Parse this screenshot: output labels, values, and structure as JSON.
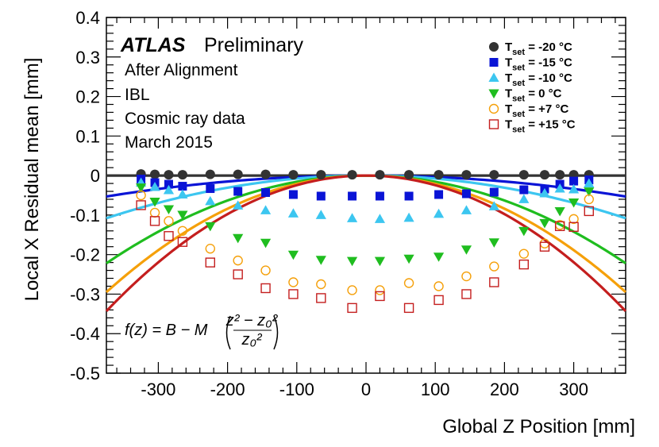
{
  "chart_data": {
    "type": "scatter",
    "xlabel": "Global Z Position [mm]",
    "ylabel": "Local X Residual mean [mm]",
    "xlim": [
      -375,
      375
    ],
    "ylim": [
      -0.5,
      0.4
    ],
    "xticks": [
      -300,
      -200,
      -100,
      0,
      100,
      200,
      300
    ],
    "xtick_labels": [
      "-300",
      "-200",
      "-100",
      "0",
      "100",
      "200",
      "300"
    ],
    "yticks": [
      0.4,
      0.3,
      0.2,
      0.1,
      0,
      -0.1,
      -0.2,
      -0.3,
      -0.4,
      -0.5
    ],
    "ytick_labels": [
      "0.4",
      "0.3",
      "0.2",
      "0.1",
      "0",
      "-0.1",
      "-0.2",
      "-0.3",
      "-0.4",
      "-0.5"
    ],
    "grid": false,
    "legend_position": "top-right",
    "annotations": {
      "atlas": "ATLAS",
      "preliminary": "Preliminary",
      "lines": [
        "After Alignment",
        "IBL",
        "Cosmic ray data",
        "March 2015"
      ]
    },
    "formula": {
      "lhs": "f(z) = B − M",
      "numerator": "z² − z₀²",
      "denominator": "z₀²"
    },
    "x": [
      -325,
      -305,
      -285,
      -265,
      -225,
      -185,
      -145,
      -105,
      -65,
      -20,
      20,
      62,
      105,
      145,
      185,
      228,
      258,
      280,
      300,
      322
    ],
    "series": [
      {
        "name": "T_set = -20 °C",
        "label_t": "T",
        "label_sub": "set",
        "label_val": "= -20  °C",
        "color": "#333333",
        "marker": "filled-circle",
        "B": 0.0,
        "M": 0.0,
        "values": [
          0.004,
          0.003,
          0.002,
          0.002,
          0.003,
          0.003,
          0.003,
          0.002,
          0.002,
          0.002,
          0.002,
          0.002,
          0.002,
          0.002,
          0.002,
          0.002,
          0.002,
          0.002,
          0.002,
          0.002
        ]
      },
      {
        "name": "T_set = -15 °C",
        "label_t": "T",
        "label_sub": "set",
        "label_val": "= -15  °C",
        "color": "#0a14d6",
        "marker": "filled-square",
        "B": -0.053,
        "M": 0.053,
        "values": [
          -0.009,
          -0.018,
          -0.022,
          -0.027,
          -0.033,
          -0.04,
          -0.043,
          -0.048,
          -0.052,
          -0.052,
          -0.052,
          -0.052,
          -0.048,
          -0.046,
          -0.042,
          -0.036,
          -0.034,
          -0.022,
          -0.014,
          -0.011
        ]
      },
      {
        "name": "T_set = -10 °C",
        "label_t": "T",
        "label_sub": "set",
        "label_val": "= -10  °C",
        "color": "#3cc6f0",
        "marker": "filled-triangle-up",
        "B": -0.108,
        "M": 0.108,
        "values": [
          -0.018,
          -0.029,
          -0.037,
          -0.048,
          -0.065,
          -0.076,
          -0.088,
          -0.096,
          -0.1,
          -0.108,
          -0.11,
          -0.107,
          -0.097,
          -0.088,
          -0.078,
          -0.06,
          -0.045,
          -0.033,
          -0.035,
          -0.02
        ]
      },
      {
        "name": "T_set = 0 °C",
        "label_t": "T",
        "label_sub": "set",
        "label_val": "= 0  °C",
        "color": "#1fbd1f",
        "marker": "filled-triangle-down",
        "B": -0.222,
        "M": 0.222,
        "values": [
          -0.03,
          -0.066,
          -0.085,
          -0.099,
          -0.128,
          -0.158,
          -0.17,
          -0.2,
          -0.213,
          -0.216,
          -0.216,
          -0.21,
          -0.205,
          -0.187,
          -0.169,
          -0.14,
          -0.12,
          -0.09,
          -0.068,
          -0.04
        ]
      },
      {
        "name": "T_set = +7 °C",
        "label_t": "T",
        "label_sub": "set",
        "label_val": "= +7  °C",
        "color": "#f5a00a",
        "marker": "open-circle",
        "B": -0.295,
        "M": 0.295,
        "values": [
          -0.05,
          -0.094,
          -0.115,
          -0.14,
          -0.185,
          -0.215,
          -0.24,
          -0.27,
          -0.275,
          -0.29,
          -0.29,
          -0.272,
          -0.28,
          -0.255,
          -0.23,
          -0.198,
          -0.172,
          -0.125,
          -0.11,
          -0.06
        ]
      },
      {
        "name": "T_set = +15 °C",
        "label_t": "T",
        "label_sub": "set",
        "label_val": "= +15  °C",
        "color": "#c41e1e",
        "marker": "open-square",
        "B": -0.343,
        "M": 0.343,
        "values": [
          -0.075,
          -0.115,
          -0.153,
          -0.168,
          -0.22,
          -0.25,
          -0.285,
          -0.3,
          -0.31,
          -0.335,
          -0.305,
          -0.335,
          -0.315,
          -0.3,
          -0.27,
          -0.225,
          -0.18,
          -0.128,
          -0.13,
          -0.09
        ]
      }
    ]
  }
}
